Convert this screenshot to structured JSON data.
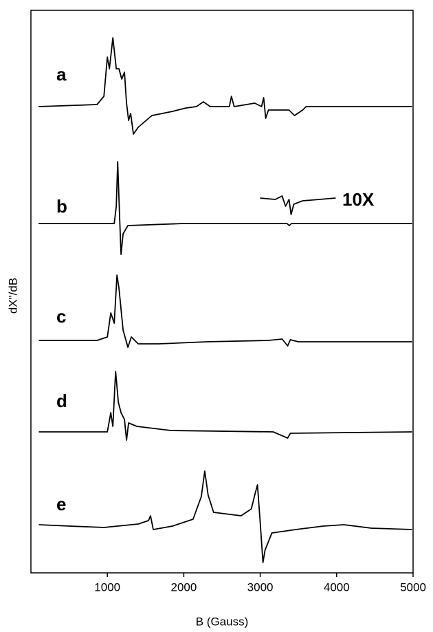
{
  "chart_data": {
    "type": "line",
    "x_label": "B (Gauss)",
    "y_label": "dX\"/dB",
    "xlim": [
      0,
      5000
    ],
    "xticks": [
      1000,
      2000,
      3000,
      4000,
      5000
    ],
    "ylim": [
      0,
      818
    ],
    "color": "#000000",
    "series": [
      {
        "name": "a",
        "color": "#000000",
        "x": [
          100,
          865,
          955,
          1000,
          1027,
          1072,
          1117,
          1152,
          1188,
          1224,
          1251,
          1278,
          1305,
          1341,
          1404,
          1583,
          1852,
          2031,
          2166,
          2256,
          2345,
          2596,
          2623,
          2659,
          2928,
          3018,
          3045,
          3072,
          3108,
          3377,
          3449,
          3556,
          3601,
          3735,
          4094,
          4987
        ],
        "values": [
          678,
          681,
          693,
          750,
          733,
          778,
          733,
          733,
          718,
          728,
          683,
          658,
          668,
          638,
          648,
          665,
          671,
          676,
          678,
          685,
          678,
          678,
          693,
          678,
          683,
          678,
          691,
          661,
          673,
          673,
          665,
          673,
          678,
          678,
          678,
          678
        ]
      },
      {
        "name": "b",
        "color": "#000000",
        "x": [
          100,
          1090,
          1117,
          1135,
          1162,
          1179,
          1206,
          1269,
          2000,
          3350,
          3380,
          3410,
          4987
        ],
        "values": [
          508,
          508,
          533,
          598,
          513,
          463,
          493,
          505,
          508,
          508,
          505,
          508,
          508
        ]
      },
      {
        "name": "10X",
        "color": "#000000",
        "x": [
          2999,
          3197,
          3287,
          3332,
          3377,
          3404,
          3439,
          3556,
          3987
        ],
        "values": [
          545,
          543,
          548,
          533,
          543,
          521,
          536,
          541,
          545
        ]
      },
      {
        "name": "c",
        "color": "#000000",
        "x": [
          103,
          865,
          1000,
          1045,
          1090,
          1126,
          1153,
          1206,
          1269,
          1314,
          1404,
          1673,
          2300,
          3108,
          3287,
          3359,
          3395,
          3500,
          4987
        ],
        "values": [
          338,
          338,
          343,
          378,
          363,
          433,
          413,
          353,
          328,
          343,
          333,
          333,
          336,
          338,
          340,
          330,
          339,
          336,
          336
        ]
      },
      {
        "name": "d",
        "color": "#000000",
        "x": [
          103,
          1000,
          1045,
          1072,
          1108,
          1144,
          1179,
          1224,
          1251,
          1278,
          1386,
          1830,
          3170,
          3359,
          3395,
          4987
        ],
        "values": [
          205,
          205,
          233,
          213,
          293,
          248,
          233,
          223,
          193,
          218,
          213,
          207,
          205,
          196,
          203,
          205
        ]
      },
      {
        "name": "e",
        "color": "#000000",
        "x": [
          103,
          507,
          955,
          1404,
          1538,
          1565,
          1601,
          1852,
          2121,
          2229,
          2274,
          2318,
          2390,
          2749,
          2884,
          2928,
          2964,
          3000,
          3036,
          3063,
          3153,
          3467,
          3825,
          4094,
          4453,
          4987
        ],
        "values": [
          70,
          68,
          66,
          71,
          76,
          83,
          63,
          68,
          78,
          111,
          148,
          113,
          88,
          83,
          93,
          113,
          128,
          73,
          15,
          33,
          58,
          63,
          68,
          70,
          65,
          63
        ]
      }
    ]
  }
}
